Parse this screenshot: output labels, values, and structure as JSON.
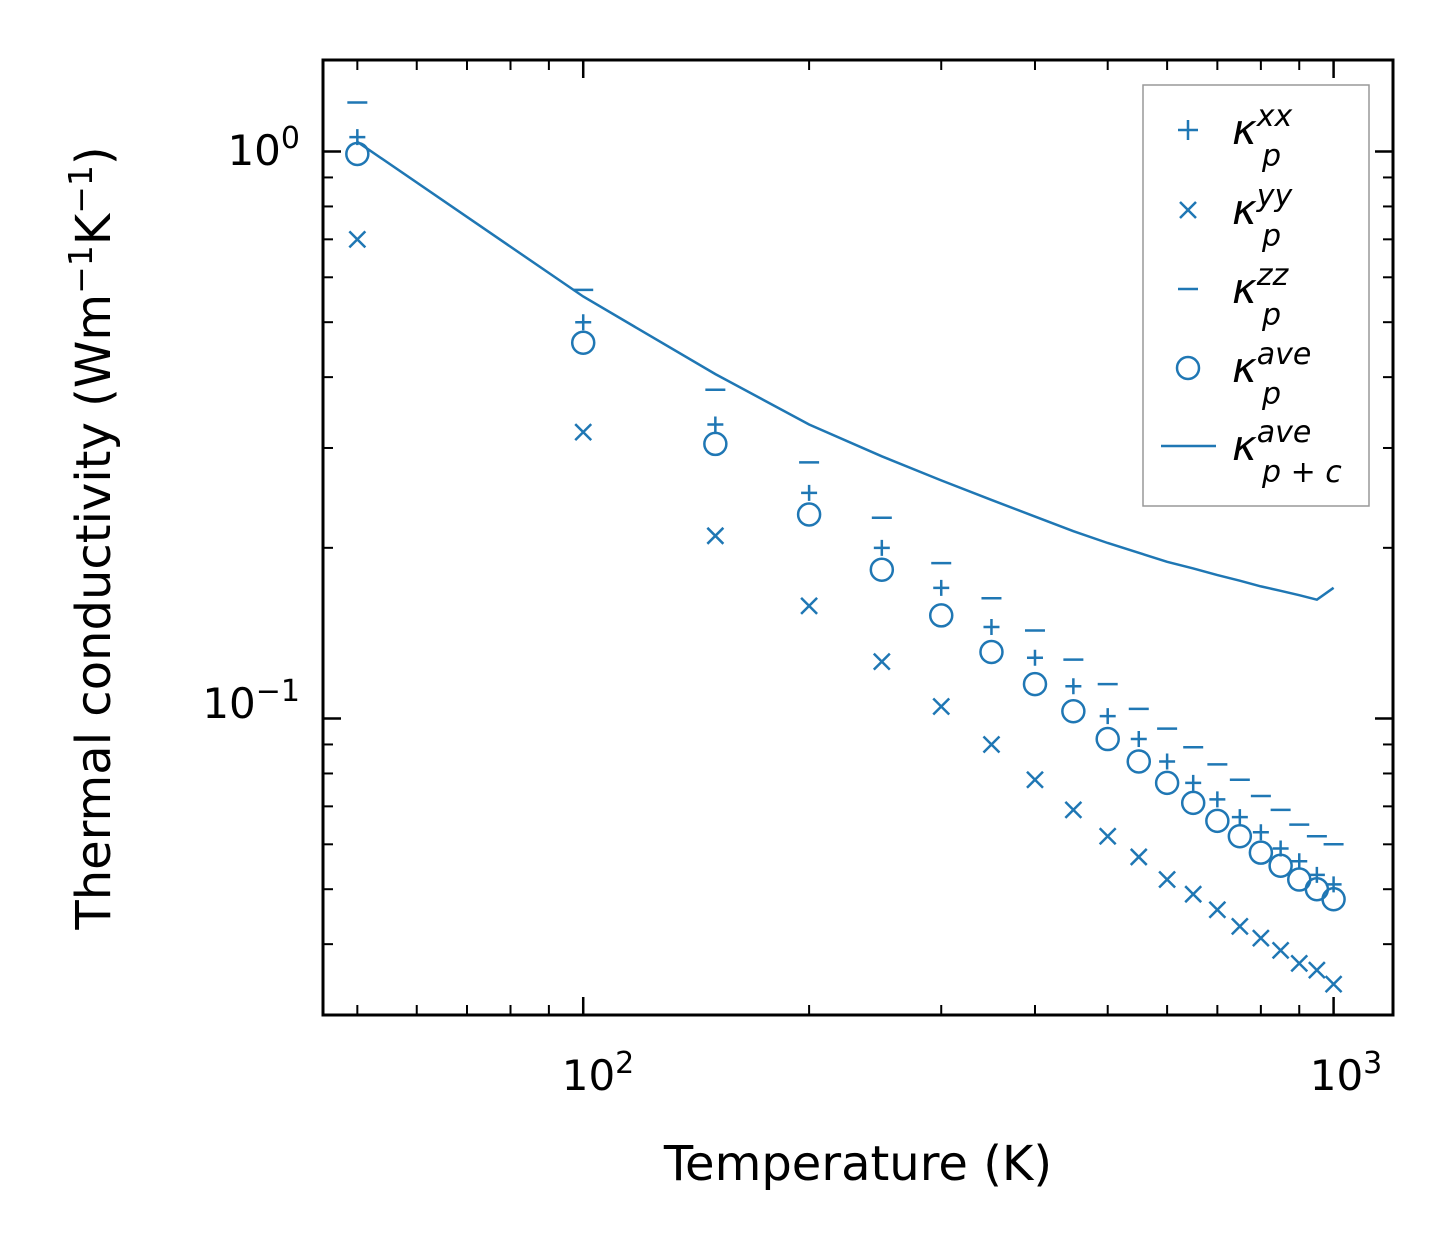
{
  "chart_data": {
    "type": "scatter",
    "xscale": "log",
    "yscale": "log",
    "xlim": [
      45,
      1200
    ],
    "ylim": [
      0.03,
      1.45
    ],
    "xlabel": "Temperature (K)",
    "ylabel": {
      "main": "Thermal conductivity (Wm",
      "sup1": "−1",
      "mid": "K",
      "sup2": "−1",
      "end": ")"
    },
    "x_ticks": [
      {
        "base": "10",
        "exp": "2",
        "value": 100
      },
      {
        "base": "10",
        "exp": "3",
        "value": 1000
      }
    ],
    "y_ticks": [
      {
        "base": "10",
        "exp": "0",
        "value": 1.0
      },
      {
        "base": "10",
        "exp": "−1",
        "value": 0.1
      }
    ],
    "color": "#1f77b4",
    "legend_position": "top-right",
    "temperatures": [
      50,
      100,
      150,
      200,
      250,
      300,
      350,
      400,
      450,
      500,
      550,
      600,
      650,
      700,
      750,
      800,
      850,
      900,
      950,
      1000
    ],
    "series": [
      {
        "name": "kappa_p_xx",
        "label": {
          "base": "κ",
          "sup": "xx",
          "sub": "p"
        },
        "marker": "plus",
        "values": [
          1.06,
          0.5,
          0.33,
          0.25,
          0.2,
          0.17,
          0.145,
          0.128,
          0.114,
          0.101,
          0.092,
          0.084,
          0.077,
          0.072,
          0.067,
          0.063,
          0.059,
          0.056,
          0.053,
          0.051
        ]
      },
      {
        "name": "kappa_p_yy",
        "label": {
          "base": "κ",
          "sup": "yy",
          "sub": "p"
        },
        "marker": "x",
        "values": [
          0.7,
          0.32,
          0.21,
          0.158,
          0.126,
          0.105,
          0.09,
          0.078,
          0.069,
          0.062,
          0.057,
          0.052,
          0.049,
          0.046,
          0.043,
          0.041,
          0.039,
          0.037,
          0.036,
          0.034
        ]
      },
      {
        "name": "kappa_p_zz",
        "label": {
          "base": "κ",
          "sup": "zz",
          "sub": "p"
        },
        "marker": "dash",
        "values": [
          1.22,
          0.57,
          0.38,
          0.283,
          0.226,
          0.188,
          0.163,
          0.143,
          0.127,
          0.115,
          0.104,
          0.096,
          0.089,
          0.083,
          0.078,
          0.073,
          0.069,
          0.065,
          0.062,
          0.06
        ]
      },
      {
        "name": "kappa_p_ave",
        "label": {
          "base": "κ",
          "sup": "ave",
          "sub": "p"
        },
        "marker": "circle",
        "values": [
          0.99,
          0.46,
          0.305,
          0.229,
          0.183,
          0.152,
          0.131,
          0.115,
          0.103,
          0.092,
          0.084,
          0.077,
          0.071,
          0.066,
          0.062,
          0.058,
          0.055,
          0.052,
          0.05,
          0.048
        ]
      },
      {
        "name": "kappa_p_plus_c_ave",
        "label": {
          "base": "κ",
          "sup": "ave",
          "sub": "p + c"
        },
        "marker": "line",
        "values": [
          1.04,
          0.555,
          0.405,
          0.33,
          0.29,
          0.263,
          0.243,
          0.227,
          0.214,
          0.204,
          0.196,
          0.189,
          0.184,
          0.179,
          0.175,
          0.171,
          0.168,
          0.165,
          0.162,
          0.17
        ]
      }
    ]
  }
}
